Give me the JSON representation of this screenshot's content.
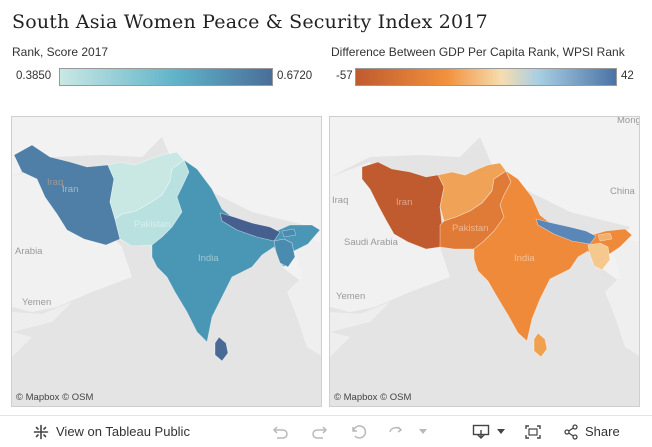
{
  "title": "South Asia Women Peace & Security Index 2017",
  "legend_score": {
    "label": "Rank, Score 2017",
    "min": "0.3850",
    "max": "0.6720",
    "color_low": "#c9e8e4",
    "color_mid": "#5fb3c9",
    "color_high": "#4a6e99"
  },
  "legend_diff": {
    "label": "Difference Between GDP Per Capita Rank, WPSI Rank",
    "min": "-57",
    "max": "42",
    "color_low": "#bf5b2e",
    "color_mid_low": "#f2913d",
    "color_neutral": "#f6ddb0",
    "color_mid_high": "#a9cfe3",
    "color_high": "#4a73a6"
  },
  "map_left": {
    "attribution": "© Mapbox  © OSM",
    "places": [
      "Iran",
      "Iraq",
      "Arabia",
      "Yemen",
      "Pakistan",
      "India"
    ],
    "country_values": {
      "Iran": "#4f7fa6",
      "Afghanistan": "#c9e8e4",
      "Pakistan": "#b9e1e0",
      "India": "#4a97b5",
      "Nepal": "#45608e",
      "Bangladesh": "#4a8cb0",
      "Bhutan": "#4a8cb0",
      "Sri Lanka": "#4a6a96"
    }
  },
  "map_right": {
    "attribution": "© Mapbox  © OSM",
    "places": [
      "Iraq",
      "Iran",
      "Saudi Arabia",
      "Yemen",
      "China",
      "India",
      "Pakistan",
      "Mongo"
    ],
    "country_values": {
      "Iran": "#bf5b2e",
      "Afghanistan": "#f0a356",
      "Pakistan": "#e07a37",
      "India": "#ef8a3a",
      "Nepal": "#5a86b8",
      "Bangladesh": "#f5c98e",
      "Bhutan": "#f2b070",
      "Sri Lanka": "#f0a14f"
    }
  },
  "toolbar": {
    "view_label": "View on Tableau Public",
    "share_label": "Share"
  }
}
